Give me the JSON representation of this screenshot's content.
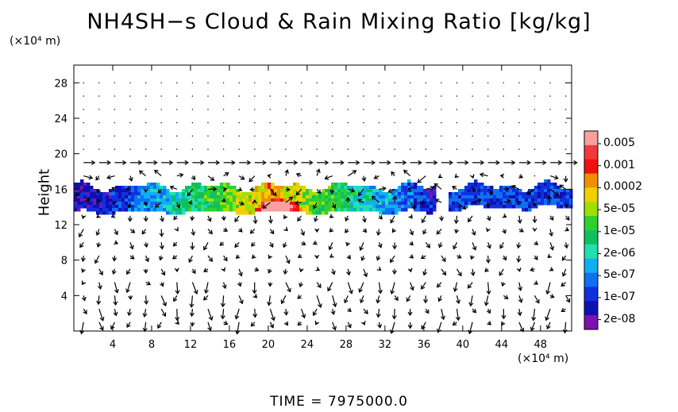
{
  "chart_data": {
    "type": "heatmap",
    "title": "NH4SH−s Cloud & Rain Mixing Ratio [kg/kg]",
    "ylabel": "Height",
    "x_unit_label": "(×10⁴ m)",
    "y_unit_label": "(×10⁴ m)",
    "x_ticks": [
      4,
      8,
      12,
      16,
      20,
      24,
      28,
      32,
      36,
      40,
      44,
      48
    ],
    "y_ticks": [
      4,
      8,
      12,
      16,
      20,
      24,
      28
    ],
    "xlim": [
      0,
      51.2
    ],
    "ylim": [
      0,
      30
    ],
    "colorbar": {
      "labels": [
        "0.005",
        "0.001",
        "0.0002",
        "5e-05",
        "1e-05",
        "2e-06",
        "5e-07",
        "1e-07",
        "2e-08"
      ],
      "colors": [
        "#f7a0a0",
        "#f03a3a",
        "#f01010",
        "#f09000",
        "#f0d000",
        "#a0e000",
        "#30d030",
        "#10c060",
        "#20e0b0",
        "#10b0f0",
        "#1070f0",
        "#1030e0",
        "#1010b0",
        "#8010b0"
      ]
    },
    "cloud_layers": [
      {
        "x_range": [
          0,
          37
        ],
        "y_range": [
          14,
          16.5
        ],
        "peak_x": 21,
        "peak_y": 14,
        "peak_value": "0.001"
      },
      {
        "x_range": [
          38.5,
          51.2
        ],
        "y_range": [
          14.5,
          16.5
        ],
        "peak_value": "5e-07"
      }
    ],
    "vector_field": "wind arrows (u, w)"
  },
  "footer": {
    "time_label": "TIME  =  7975000.0"
  }
}
